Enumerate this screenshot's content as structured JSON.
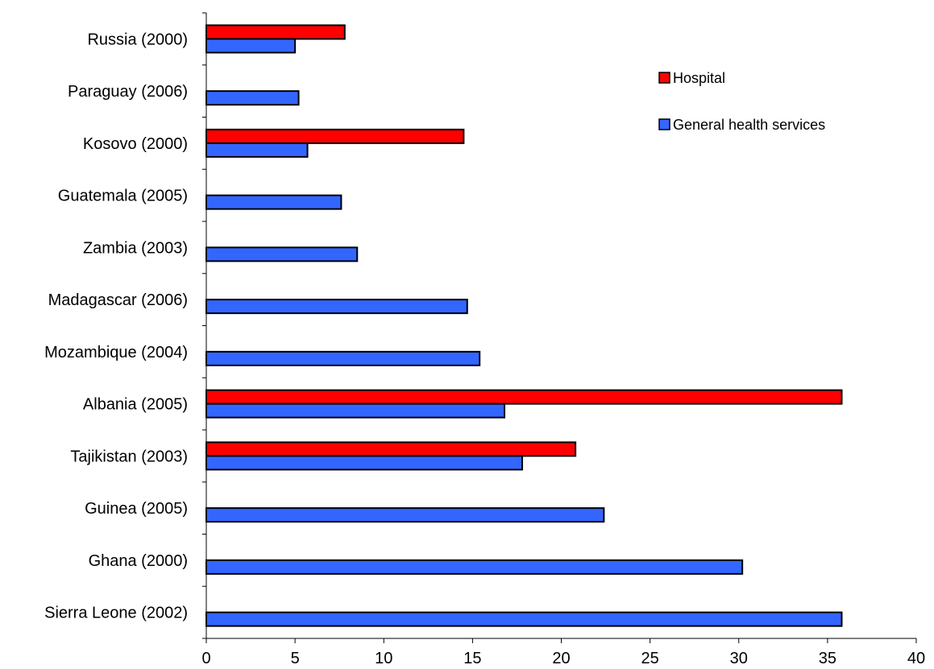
{
  "chart_data": {
    "type": "bar",
    "orientation": "horizontal",
    "categories": [
      "Russia (2000)",
      "Paraguay (2006)",
      "Kosovo (2000)",
      "Guatemala (2005)",
      "Zambia (2003)",
      "Madagascar (2006)",
      "Mozambique (2004)",
      "Albania (2005)",
      "Tajikistan (2003)",
      "Guinea (2005)",
      "Ghana (2000)",
      "Sierra Leone (2002)"
    ],
    "series": [
      {
        "name": "Hospital",
        "color": "#ff0000",
        "values": [
          7.8,
          null,
          14.5,
          null,
          null,
          null,
          null,
          35.8,
          20.8,
          null,
          null,
          null
        ]
      },
      {
        "name": "General health services",
        "color": "#3366ff",
        "values": [
          5.0,
          5.2,
          5.7,
          7.6,
          8.5,
          14.7,
          15.4,
          16.8,
          17.8,
          22.4,
          30.2,
          35.8
        ]
      }
    ],
    "xlim": [
      0,
      40
    ],
    "xticks": [
      0,
      5,
      10,
      15,
      20,
      25,
      30,
      35,
      40
    ],
    "grid": false,
    "legend_position": "top-right"
  }
}
